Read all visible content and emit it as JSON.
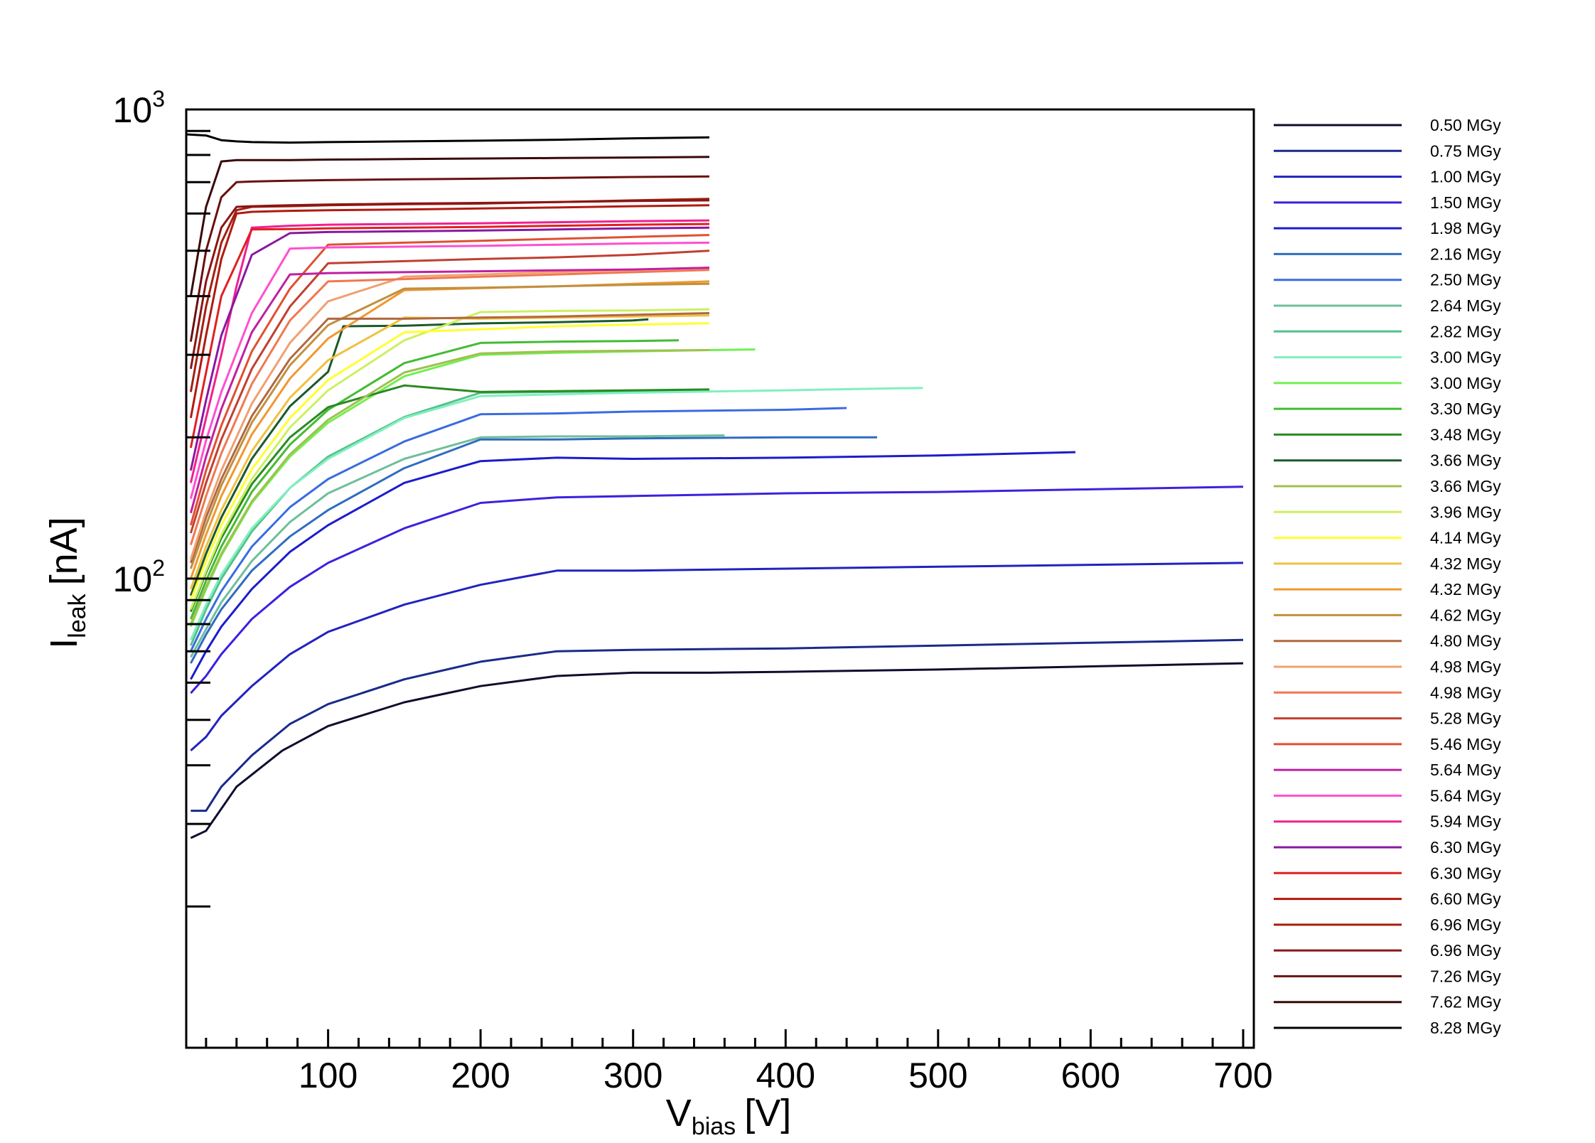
{
  "chart_data": {
    "type": "line",
    "title": "",
    "xlabel": {
      "main": "V",
      "sub": "bias",
      "unit": "[V]"
    },
    "ylabel": {
      "main": "I",
      "sub": "leak",
      "unit": "[nA]"
    },
    "xlim": [
      7,
      707
    ],
    "ylim": [
      10,
      1000
    ],
    "y_scale": "log",
    "x_ticks": [
      "100",
      "200",
      "300",
      "400",
      "500",
      "600",
      "700"
    ],
    "y_ticks": [
      {
        "base": "10",
        "exp": "2"
      },
      {
        "base": "10",
        "exp": "3"
      }
    ],
    "grid": false,
    "legend_position": "right",
    "series": [
      {
        "name": "0.50 MGy",
        "color": "#0d0d2e",
        "x": [
          10,
          20,
          40,
          70,
          100,
          150,
          200,
          250,
          300,
          350,
          400,
          500,
          600,
          700
        ],
        "y": [
          28,
          29,
          36,
          43,
          48.5,
          54.5,
          59,
          62,
          63,
          63,
          63.3,
          64,
          65,
          66
        ]
      },
      {
        "name": "0.75 MGy",
        "color": "#1a2a8a",
        "x": [
          10,
          20,
          30,
          50,
          75,
          100,
          150,
          200,
          250,
          300,
          400,
          500,
          600,
          700
        ],
        "y": [
          32,
          32,
          36,
          42,
          49,
          54,
          61,
          66.5,
          70,
          70.5,
          71,
          72,
          73,
          74
        ]
      },
      {
        "name": "1.00 MGy",
        "color": "#2222c0",
        "x": [
          10,
          20,
          30,
          50,
          75,
          100,
          150,
          200,
          250,
          300,
          400,
          500,
          600,
          700
        ],
        "y": [
          43,
          46,
          51,
          59,
          69,
          77,
          88,
          97,
          104,
          104,
          105,
          106,
          107,
          108
        ]
      },
      {
        "name": "1.50 MGy",
        "color": "#3a22dd",
        "x": [
          10,
          20,
          30,
          50,
          75,
          100,
          150,
          200,
          250,
          300,
          400,
          500,
          600,
          700
        ],
        "y": [
          57,
          62,
          69,
          82,
          96,
          108,
          128,
          145,
          149,
          150,
          152,
          153,
          155,
          157
        ]
      },
      {
        "name": "1.98 MGy",
        "color": "#1c1ccc",
        "x": [
          10,
          20,
          30,
          50,
          75,
          100,
          150,
          200,
          250,
          300,
          400,
          500,
          590
        ],
        "y": [
          61,
          70,
          79,
          95,
          114,
          130,
          160,
          178,
          181,
          180,
          181,
          183,
          186
        ]
      },
      {
        "name": "2.16 MGy",
        "color": "#2f6cc0",
        "x": [
          10,
          20,
          30,
          50,
          75,
          100,
          150,
          200,
          250,
          300,
          400,
          460
        ],
        "y": [
          66,
          76,
          86,
          104,
          123,
          140,
          172,
          198,
          198,
          199,
          200,
          200
        ]
      },
      {
        "name": "2.50 MGy",
        "color": "#3a6ce0",
        "x": [
          10,
          20,
          30,
          50,
          75,
          100,
          150,
          200,
          250,
          300,
          400,
          440
        ],
        "y": [
          70,
          82,
          94,
          117,
          142,
          163,
          196,
          224,
          225,
          227,
          229,
          231
        ]
      },
      {
        "name": "2.64 MGy",
        "color": "#6fbf9a",
        "x": [
          10,
          20,
          30,
          50,
          75,
          100,
          150,
          200,
          250,
          300,
          360
        ],
        "y": [
          68,
          78,
          89,
          109,
          132,
          152,
          180,
          200,
          201,
          201,
          202
        ]
      },
      {
        "name": "2.82 MGy",
        "color": "#55c08a",
        "x": [
          10,
          20,
          30,
          50,
          75,
          100,
          150,
          200,
          250,
          300,
          350
        ],
        "y": [
          72,
          86,
          100,
          126,
          156,
          182,
          221,
          249,
          250,
          251,
          252
        ]
      },
      {
        "name": "3.00 MGy",
        "color": "#80f0c0",
        "x": [
          10,
          20,
          30,
          50,
          75,
          100,
          150,
          200,
          250,
          300,
          400,
          490
        ],
        "y": [
          74,
          88,
          102,
          128,
          156,
          180,
          220,
          245,
          247,
          249,
          252,
          255
        ]
      },
      {
        "name": "3.00 MGy",
        "color": "#70f050",
        "x": [
          10,
          20,
          30,
          50,
          75,
          100,
          150,
          200,
          250,
          300,
          350,
          380
        ],
        "y": [
          79,
          95,
          112,
          145,
          182,
          215,
          270,
          300,
          303,
          305,
          307,
          308
        ]
      },
      {
        "name": "3.30 MGy",
        "color": "#44bb33",
        "x": [
          10,
          20,
          30,
          50,
          75,
          100,
          150,
          200,
          250,
          300,
          330
        ],
        "y": [
          82,
          99,
          117,
          153,
          193,
          229,
          288,
          318,
          320,
          321,
          322
        ]
      },
      {
        "name": "3.48 MGy",
        "color": "#2a8a22",
        "x": [
          10,
          20,
          30,
          50,
          75,
          100,
          150,
          200,
          250,
          300,
          350
        ],
        "y": [
          85,
          103,
          122,
          159,
          200,
          232,
          258,
          250,
          251,
          252,
          253
        ]
      },
      {
        "name": "3.66 MGy",
        "color": "#1a5a2a",
        "x": [
          10,
          20,
          30,
          50,
          75,
          100,
          110,
          150,
          200,
          250,
          300,
          310
        ],
        "y": [
          92,
          113,
          135,
          180,
          233,
          276,
          345,
          346,
          350,
          352,
          355,
          357
        ]
      },
      {
        "name": "3.66 MGy",
        "color": "#a0c050",
        "x": [
          10,
          20,
          30,
          50,
          75,
          100,
          150,
          200,
          250,
          300,
          350
        ],
        "y": [
          80,
          96,
          113,
          146,
          184,
          218,
          275,
          302,
          305,
          306,
          307
        ]
      },
      {
        "name": "3.96 MGy",
        "color": "#ccf060",
        "x": [
          10,
          20,
          30,
          50,
          75,
          100,
          150,
          200,
          250,
          300,
          350
        ],
        "y": [
          86,
          104,
          124,
          163,
          210,
          252,
          322,
          370,
          372,
          373,
          375
        ]
      },
      {
        "name": "4.14 MGy",
        "color": "#ffff30",
        "x": [
          10,
          20,
          30,
          50,
          75,
          100,
          150,
          200,
          250,
          300,
          350
        ],
        "y": [
          90,
          109,
          130,
          171,
          220,
          265,
          335,
          340,
          345,
          348,
          350
        ]
      },
      {
        "name": "4.32 MGy",
        "color": "#f0c040",
        "x": [
          10,
          20,
          30,
          50,
          75,
          100,
          150,
          200,
          250,
          300,
          350
        ],
        "y": [
          95,
          117,
          140,
          187,
          243,
          292,
          360,
          358,
          360,
          362,
          364
        ]
      },
      {
        "name": "4.32 MGy",
        "color": "#f09830",
        "x": [
          10,
          20,
          30,
          50,
          75,
          100,
          150,
          200,
          250,
          300,
          350
        ],
        "y": [
          100,
          124,
          150,
          203,
          267,
          325,
          412,
          416,
          420,
          425,
          430
        ]
      },
      {
        "name": "4.62 MGy",
        "color": "#c09040",
        "x": [
          10,
          20,
          30,
          50,
          75,
          100,
          150,
          200,
          250,
          300,
          350
        ],
        "y": [
          105,
          130,
          158,
          215,
          285,
          347,
          415,
          417,
          420,
          423,
          425
        ]
      },
      {
        "name": "4.80 MGy",
        "color": "#b06840",
        "x": [
          10,
          20,
          30,
          50,
          75,
          100,
          150,
          200,
          250,
          300,
          350
        ],
        "y": [
          108,
          135,
          163,
          222,
          294,
          358,
          358,
          360,
          362,
          365,
          368
        ]
      },
      {
        "name": "4.98 MGy",
        "color": "#f0a070",
        "x": [
          10,
          20,
          30,
          50,
          75,
          100,
          150,
          200,
          250,
          300,
          350
        ],
        "y": [
          110,
          139,
          170,
          236,
          318,
          390,
          440,
          445,
          450,
          455,
          460
        ]
      },
      {
        "name": "4.98 MGy",
        "color": "#f07850",
        "x": [
          10,
          20,
          30,
          50,
          75,
          100,
          150,
          200,
          250,
          300,
          350
        ],
        "y": [
          118,
          150,
          185,
          260,
          355,
          430,
          435,
          440,
          445,
          450,
          455
        ]
      },
      {
        "name": "5.28 MGy",
        "color": "#c04030",
        "x": [
          10,
          20,
          30,
          50,
          75,
          100,
          150,
          200,
          250,
          300,
          350
        ],
        "y": [
          125,
          160,
          198,
          280,
          380,
          470,
          475,
          480,
          484,
          490,
          500
        ]
      },
      {
        "name": "5.46 MGy",
        "color": "#e05030",
        "x": [
          10,
          20,
          30,
          50,
          75,
          100,
          150,
          200,
          250,
          300,
          350
        ],
        "y": [
          130,
          170,
          212,
          305,
          415,
          515,
          520,
          525,
          530,
          535,
          540
        ]
      },
      {
        "name": "5.64 MGy",
        "color": "#c020a0",
        "x": [
          10,
          20,
          30,
          50,
          75,
          100,
          150,
          200,
          250,
          300,
          350
        ],
        "y": [
          138,
          182,
          230,
          335,
          445,
          448,
          450,
          452,
          454,
          456,
          460
        ]
      },
      {
        "name": "5.64 MGy",
        "color": "#ff4fd0",
        "x": [
          10,
          20,
          30,
          50,
          75,
          100,
          150,
          200,
          250,
          300,
          350
        ],
        "y": [
          148,
          197,
          250,
          368,
          505,
          508,
          510,
          512,
          515,
          518,
          520
        ]
      },
      {
        "name": "5.94 MGy",
        "color": "#f02090",
        "x": [
          10,
          20,
          30,
          40,
          50,
          75,
          100,
          150,
          200,
          250,
          300,
          350
        ],
        "y": [
          160,
          220,
          300,
          420,
          560,
          565,
          568,
          570,
          572,
          575,
          578,
          580
        ]
      },
      {
        "name": "6.30 MGy",
        "color": "#8a18a0",
        "x": [
          10,
          20,
          30,
          50,
          75,
          100,
          150,
          200,
          250,
          300,
          350
        ],
        "y": [
          170,
          240,
          330,
          490,
          545,
          548,
          550,
          552,
          555,
          558,
          560
        ]
      },
      {
        "name": "6.30 MGy",
        "color": "#e02020",
        "x": [
          10,
          20,
          30,
          50,
          75,
          100,
          150,
          200,
          250,
          300,
          350
        ],
        "y": [
          190,
          275,
          400,
          555,
          556,
          558,
          560,
          562,
          565,
          568,
          570
        ]
      },
      {
        "name": "6.60 MGy",
        "color": "#b01a10",
        "x": [
          10,
          20,
          30,
          40,
          50,
          75,
          100,
          150,
          200,
          250,
          300,
          350
        ],
        "y": [
          220,
          330,
          480,
          600,
          605,
          608,
          610,
          612,
          615,
          618,
          622,
          625
        ]
      },
      {
        "name": "6.96 MGy",
        "color": "#a02010",
        "x": [
          10,
          20,
          30,
          40,
          50,
          75,
          100,
          150,
          200,
          250,
          300,
          350
        ],
        "y": [
          250,
          380,
          520,
          610,
          620,
          622,
          625,
          628,
          630,
          635,
          640,
          645
        ]
      },
      {
        "name": "6.96 MGy",
        "color": "#8a1515",
        "x": [
          10,
          20,
          30,
          40,
          50,
          75,
          100,
          150,
          200,
          250,
          300,
          350
        ],
        "y": [
          280,
          430,
          560,
          620,
          622,
          625,
          627,
          630,
          632,
          635,
          638,
          640
        ]
      },
      {
        "name": "7.26 MGy",
        "color": "#6a1010",
        "x": [
          10,
          20,
          30,
          40,
          50,
          75,
          100,
          150,
          200,
          250,
          300,
          350
        ],
        "y": [
          320,
          500,
          650,
          700,
          702,
          705,
          707,
          710,
          712,
          715,
          718,
          720
        ]
      },
      {
        "name": "7.62 MGy",
        "color": "#3a0808",
        "x": [
          10,
          20,
          30,
          40,
          50,
          75,
          100,
          150,
          200,
          250,
          300,
          350
        ],
        "y": [
          400,
          620,
          775,
          780,
          780,
          780,
          782,
          784,
          786,
          788,
          790,
          792
        ]
      },
      {
        "name": "8.28 MGy",
        "color": "#000000",
        "x": [
          7,
          20,
          30,
          40,
          50,
          75,
          100,
          150,
          200,
          250,
          300,
          350
        ],
        "y": [
          885,
          880,
          860,
          855,
          852,
          850,
          852,
          855,
          858,
          862,
          868,
          872
        ]
      }
    ]
  }
}
